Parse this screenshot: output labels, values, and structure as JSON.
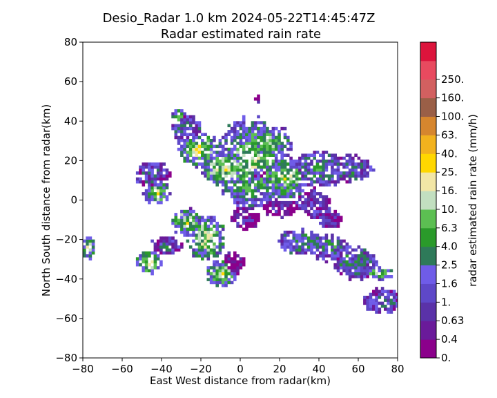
{
  "chart_data": {
    "type": "heatmap",
    "title": "Desio_Radar 1.0 km 2024-05-22T14:45:47Z",
    "subtitle": "Radar estimated rain rate",
    "xlabel": "East West distance from radar(km)",
    "ylabel": "North South distance from radar(km)",
    "xlim": [
      -80,
      80
    ],
    "ylim": [
      -80,
      80
    ],
    "xticks": [
      -80,
      -60,
      -40,
      -20,
      0,
      20,
      40,
      60,
      80
    ],
    "yticks": [
      -80,
      -60,
      -40,
      -20,
      0,
      20,
      40,
      60,
      80
    ],
    "xtick_labels": [
      "−80",
      "−60",
      "−40",
      "−20",
      "0",
      "20",
      "40",
      "60",
      "80"
    ],
    "ytick_labels": [
      "−80",
      "−60",
      "−40",
      "−20",
      "0",
      "20",
      "40",
      "60",
      "80"
    ],
    "grid": false,
    "colorbar": {
      "label": "radar estimated rain rate (mm/h)",
      "tick_labels": [
        "0.",
        "0.4",
        "0.63",
        "1.",
        "1.6",
        "2.5",
        "4.0",
        "6.3",
        "10.",
        "16.",
        "25.",
        "40.",
        "63.",
        "100.",
        "160.",
        "250."
      ],
      "colors": [
        "#8b008b",
        "#6a1b9a",
        "#5a32a8",
        "#5e48c8",
        "#6f5ce8",
        "#2e7a59",
        "#2a9a2a",
        "#5cbf52",
        "#c2dfc0",
        "#f2e6a6",
        "#ffd700",
        "#f2b21e",
        "#d6862e",
        "#9a5f47",
        "#d26060",
        "#e84a5f",
        "#dc143c"
      ]
    },
    "rain_cells": [
      {
        "x": 5,
        "y": 18,
        "rx": 16,
        "ry": 20,
        "level": 0.55
      },
      {
        "x": 8,
        "y": 14,
        "rx": 9,
        "ry": 8,
        "level": 0.18
      },
      {
        "x": 14,
        "y": 28,
        "rx": 10,
        "ry": 8,
        "level": 0.55
      },
      {
        "x": 22,
        "y": 10,
        "rx": 10,
        "ry": 9,
        "level": 0.6
      },
      {
        "x": -8,
        "y": 15,
        "rx": 12,
        "ry": 8,
        "level": 0.62
      },
      {
        "x": -22,
        "y": 25,
        "rx": 9,
        "ry": 8,
        "level": 0.65
      },
      {
        "x": -28,
        "y": 35,
        "rx": 7,
        "ry": 7,
        "level": 0.35
      },
      {
        "x": -45,
        "y": 12,
        "rx": 8,
        "ry": 6,
        "level": 0.3
      },
      {
        "x": -43,
        "y": 3,
        "rx": 6,
        "ry": 5,
        "level": 0.62
      },
      {
        "x": 40,
        "y": 15,
        "rx": 12,
        "ry": 8,
        "level": 0.4
      },
      {
        "x": 55,
        "y": 15,
        "rx": 10,
        "ry": 6,
        "level": 0.35
      },
      {
        "x": 37,
        "y": -3,
        "rx": 8,
        "ry": 6,
        "level": 0.25
      },
      {
        "x": 45,
        "y": -10,
        "rx": 5,
        "ry": 5,
        "level": 0.2
      },
      {
        "x": -18,
        "y": -20,
        "rx": 9,
        "ry": 10,
        "level": 0.6
      },
      {
        "x": -28,
        "y": -12,
        "rx": 7,
        "ry": 6,
        "level": 0.62
      },
      {
        "x": -10,
        "y": -38,
        "rx": 7,
        "ry": 6,
        "level": 0.62
      },
      {
        "x": -4,
        "y": -33,
        "rx": 5,
        "ry": 5,
        "level": 0.05
      },
      {
        "x": -47,
        "y": -32,
        "rx": 6,
        "ry": 5,
        "level": 0.62
      },
      {
        "x": -38,
        "y": -24,
        "rx": 7,
        "ry": 4,
        "level": 0.3
      },
      {
        "x": 30,
        "y": -22,
        "rx": 10,
        "ry": 6,
        "level": 0.45
      },
      {
        "x": 45,
        "y": -25,
        "rx": 9,
        "ry": 6,
        "level": 0.4
      },
      {
        "x": 58,
        "y": -33,
        "rx": 10,
        "ry": 7,
        "level": 0.4
      },
      {
        "x": 70,
        "y": -38,
        "rx": 6,
        "ry": 3,
        "level": 0.62
      },
      {
        "x": 72,
        "y": -52,
        "rx": 9,
        "ry": 6,
        "level": 0.3
      },
      {
        "x": -78,
        "y": -25,
        "rx": 3,
        "ry": 5,
        "level": 0.62
      },
      {
        "x": 2,
        "y": -10,
        "rx": 6,
        "ry": 5,
        "level": 0.1
      },
      {
        "x": 20,
        "y": -5,
        "rx": 8,
        "ry": 4,
        "level": 0.1
      },
      {
        "x": -32,
        "y": 42,
        "rx": 3,
        "ry": 3,
        "level": 0.62
      },
      {
        "x": 8,
        "y": 50,
        "rx": 1,
        "ry": 2,
        "level": 0.05
      }
    ]
  }
}
